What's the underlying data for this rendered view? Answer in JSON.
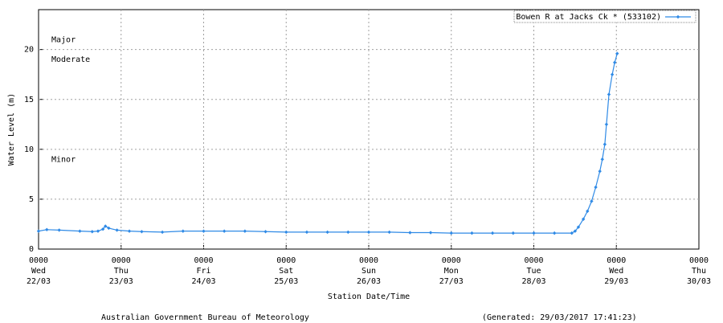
{
  "chart_data": {
    "type": "line",
    "xlabel": "Station Date/Time",
    "ylabel": "Water Level (m)",
    "footer_left": "Australian Government Bureau of Meteorology",
    "footer_right": "(Generated: 29/03/2017 17:41:23)",
    "legend": "top-right",
    "grid": true,
    "xlim": [
      0,
      8
    ],
    "ylim": [
      0,
      24
    ],
    "yticks": [
      0,
      5,
      10,
      15,
      20
    ],
    "xticks": [
      {
        "value": 0,
        "label": [
          "0000",
          "Wed",
          "22/03"
        ]
      },
      {
        "value": 1,
        "label": [
          "0000",
          "Thu",
          "23/03"
        ]
      },
      {
        "value": 2,
        "label": [
          "0000",
          "Fri",
          "24/03"
        ]
      },
      {
        "value": 3,
        "label": [
          "0000",
          "Sat",
          "25/03"
        ]
      },
      {
        "value": 4,
        "label": [
          "0000",
          "Sun",
          "26/03"
        ]
      },
      {
        "value": 5,
        "label": [
          "0000",
          "Mon",
          "27/03"
        ]
      },
      {
        "value": 6,
        "label": [
          "0000",
          "Tue",
          "28/03"
        ]
      },
      {
        "value": 7,
        "label": [
          "0000",
          "Wed",
          "29/03"
        ]
      },
      {
        "value": 8,
        "label": [
          "0000",
          "Thu",
          "30/03"
        ]
      }
    ],
    "flood_levels": [
      {
        "label": "Major",
        "value": 21
      },
      {
        "label": "Moderate",
        "value": 19
      },
      {
        "label": "Minor",
        "value": 9
      }
    ],
    "series": [
      {
        "name": "Bowen R at Jacks Ck * (533102)",
        "color": "#2f8ae6",
        "x": [
          0,
          0.1,
          0.25,
          0.5,
          0.65,
          0.72,
          0.78,
          0.81,
          0.85,
          0.95,
          1.1,
          1.25,
          1.5,
          1.75,
          2,
          2.25,
          2.5,
          2.75,
          3,
          3.25,
          3.5,
          3.75,
          4,
          4.25,
          4.5,
          4.75,
          5,
          5.25,
          5.5,
          5.75,
          6,
          6.25,
          6.46,
          6.5,
          6.54,
          6.6,
          6.65,
          6.7,
          6.75,
          6.8,
          6.83,
          6.86,
          6.88,
          6.91,
          6.95,
          6.98,
          7.01
        ],
        "values": [
          1.8,
          1.95,
          1.9,
          1.8,
          1.75,
          1.8,
          2.0,
          2.3,
          2.1,
          1.9,
          1.8,
          1.75,
          1.7,
          1.8,
          1.8,
          1.8,
          1.8,
          1.75,
          1.7,
          1.7,
          1.7,
          1.7,
          1.7,
          1.7,
          1.65,
          1.65,
          1.6,
          1.6,
          1.6,
          1.6,
          1.6,
          1.6,
          1.6,
          1.8,
          2.2,
          3.0,
          3.8,
          4.8,
          6.2,
          7.8,
          9.0,
          10.5,
          12.5,
          15.5,
          17.5,
          18.7,
          19.6
        ]
      }
    ]
  }
}
